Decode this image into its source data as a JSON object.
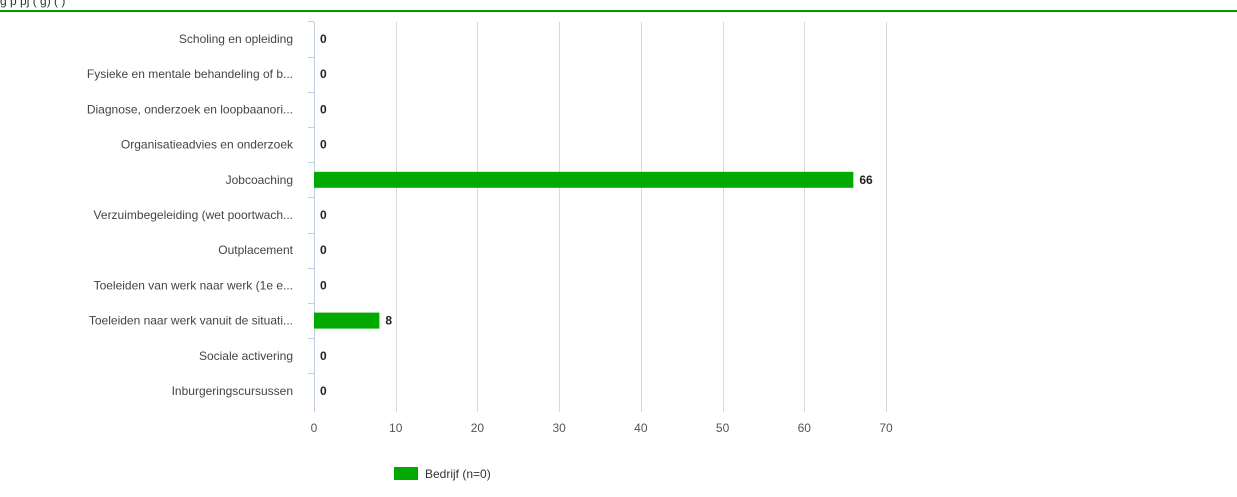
{
  "header": {
    "text": "g                          p                              pj           (         g)    (   )",
    "line_color": "#009900"
  },
  "chart_data": {
    "type": "bar",
    "orientation": "horizontal",
    "title": "",
    "xlabel": "",
    "ylabel": "",
    "categories": [
      "Scholing en opleiding",
      "Fysieke en mentale behandeling of b...",
      "Diagnose, onderzoek en loopbaanori...",
      "Organisatieadvies en onderzoek",
      "Jobcoaching",
      "Verzuimbegeleiding (wet poortwach...",
      "Outplacement",
      "Toeleiden van werk naar werk (1e e...",
      "Toeleiden naar werk vanuit de situati...",
      "Sociale activering",
      "Inburgeringscursussen"
    ],
    "series": [
      {
        "name": "Bedrijf (n=0)",
        "color": "#00aa00",
        "values": [
          0,
          0,
          0,
          0,
          66,
          0,
          0,
          0,
          8,
          0,
          0
        ]
      }
    ],
    "xlim": [
      0,
      70
    ],
    "xticks": [
      0,
      10,
      20,
      30,
      40,
      50,
      60,
      70
    ],
    "grid": true,
    "legend_position": "bottom",
    "data_labels": true
  }
}
